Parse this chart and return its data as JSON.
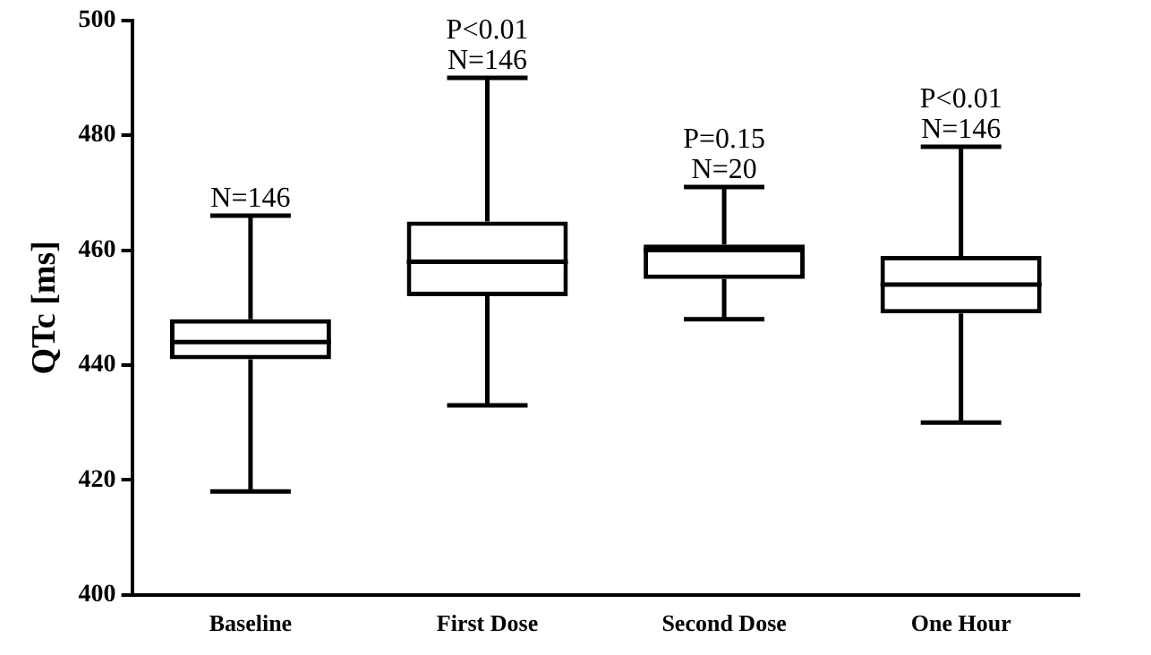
{
  "chart_data": {
    "type": "box",
    "ylabel": "QTc [ms]",
    "categories": [
      "Baseline",
      "First Dose",
      "Second Dose",
      "One Hour"
    ],
    "boxes": [
      {
        "low": 418,
        "q1": 441,
        "median": 444,
        "q3": 448,
        "high": 466
      },
      {
        "low": 433,
        "q1": 452,
        "median": 458,
        "q3": 465,
        "high": 490
      },
      {
        "low": 448,
        "q1": 455,
        "median": 460,
        "q3": 461,
        "high": 471
      },
      {
        "low": 430,
        "q1": 449,
        "median": 454,
        "q3": 459,
        "high": 478
      }
    ],
    "color": "#000000",
    "ylim": [
      400,
      500
    ],
    "yticks": [
      400,
      420,
      440,
      460,
      480,
      500
    ],
    "grid": false,
    "annotations": [
      {
        "text": "N=146",
        "x": "Baseline",
        "y": 466
      },
      {
        "text": "P<0.01",
        "x": "First Dose",
        "y": 490
      },
      {
        "text": "N=146",
        "x": "First Dose",
        "y": 490
      },
      {
        "text": "P=0.15",
        "x": "Second Dose",
        "y": 471
      },
      {
        "text": "N=20",
        "x": "Second Dose",
        "y": 471
      },
      {
        "text": "P<0.01",
        "x": "One Hour",
        "y": 478
      },
      {
        "text": "N=146",
        "x": "One Hour",
        "y": 478
      }
    ]
  }
}
